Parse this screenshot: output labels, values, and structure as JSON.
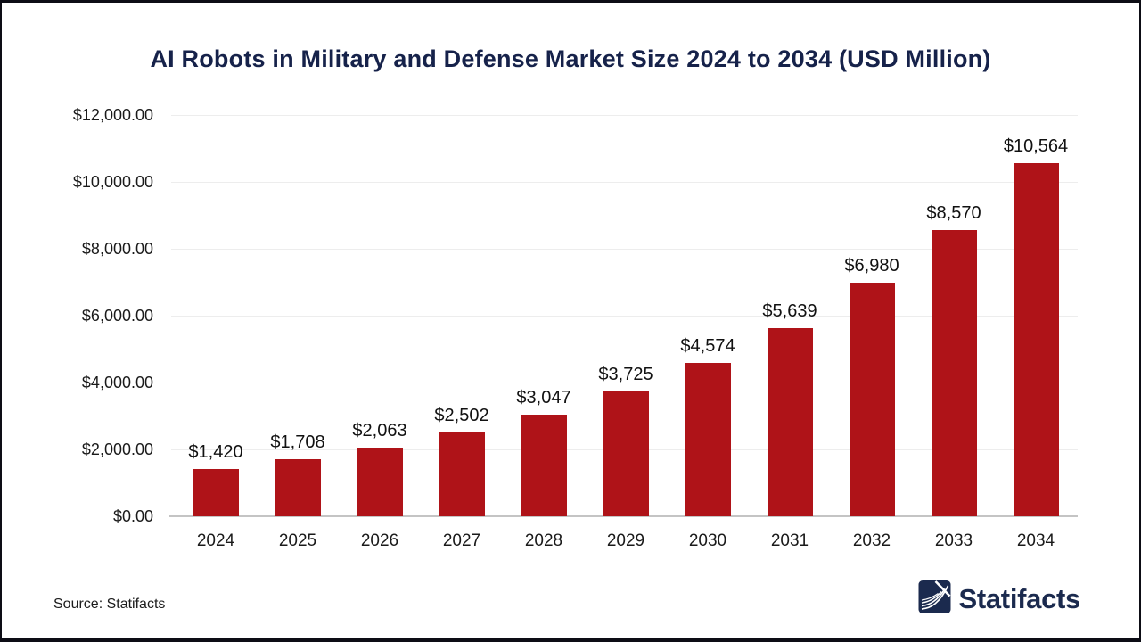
{
  "title": "AI Robots in Military and Defense Market Size 2024 to 2034 (USD Million)",
  "chart_data": {
    "type": "bar",
    "title": "AI Robots in Military and Defense Market Size 2024 to 2034 (USD Million)",
    "categories": [
      "2024",
      "2025",
      "2026",
      "2027",
      "2028",
      "2029",
      "2030",
      "2031",
      "2032",
      "2033",
      "2034"
    ],
    "values": [
      1420,
      1708,
      2063,
      2502,
      3047,
      3725,
      4574,
      5639,
      6980,
      8570,
      10564
    ],
    "value_labels": [
      "$1,420",
      "$1,708",
      "$2,063",
      "$2,502",
      "$3,047",
      "$3,725",
      "$4,574",
      "$5,639",
      "$6,980",
      "$8,570",
      "$10,564"
    ],
    "yticks": [
      {
        "value": 0,
        "label": "$0.00"
      },
      {
        "value": 2000,
        "label": "$2,000.00"
      },
      {
        "value": 4000,
        "label": "$4,000.00"
      },
      {
        "value": 6000,
        "label": "$6,000.00"
      },
      {
        "value": 8000,
        "label": "$8,000.00"
      },
      {
        "value": 10000,
        "label": "$10,000.00"
      },
      {
        "value": 12000,
        "label": "$12,000.00"
      }
    ],
    "ylim": [
      0,
      12000
    ],
    "xlabel": "",
    "ylabel": "",
    "unit": "USD Million",
    "grid": "horizontal",
    "legend": "none"
  },
  "colors": {
    "bar": "#AF1318",
    "title": "#16224a",
    "brand_navy": "#1b2a4e",
    "gridline": "#ededed",
    "axis_line": "#c4c4c4",
    "frame_border": "#0d0d15"
  },
  "footer": {
    "source_text": "Source: Statifacts",
    "brand_name": "Statifacts",
    "logo_icon": "statifacts-wave-icon"
  }
}
